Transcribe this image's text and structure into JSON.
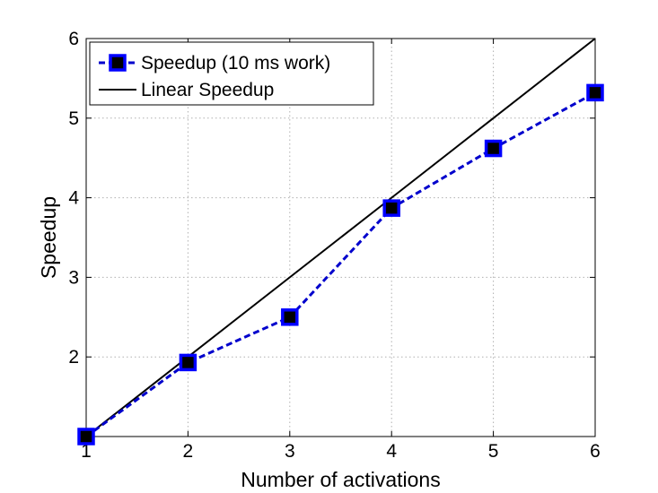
{
  "chart_data": {
    "type": "line",
    "title": "",
    "xlabel": "Number of activations",
    "ylabel": "Speedup",
    "xlim": [
      1,
      6
    ],
    "ylim": [
      1,
      6
    ],
    "x_ticks": [
      "1",
      "2",
      "3",
      "4",
      "5",
      "6"
    ],
    "y_ticks": [
      "2",
      "3",
      "4",
      "5",
      "6"
    ],
    "grid": true,
    "legend_position": "top-left",
    "series": [
      {
        "name": "Speedup (10 ms work)",
        "style": "dashed line with square markers",
        "color": "#0000cc",
        "marker_fill": "#000000",
        "marker_edge": "#0000ff",
        "x": [
          1,
          2,
          3,
          4,
          5,
          6
        ],
        "y": [
          1.0,
          1.93,
          2.5,
          3.87,
          4.62,
          5.32
        ]
      },
      {
        "name": "Linear Speedup",
        "style": "solid line",
        "color": "#000000",
        "x": [
          1,
          2,
          3,
          4,
          5,
          6
        ],
        "y": [
          1,
          2,
          3,
          4,
          5,
          6
        ]
      }
    ]
  }
}
